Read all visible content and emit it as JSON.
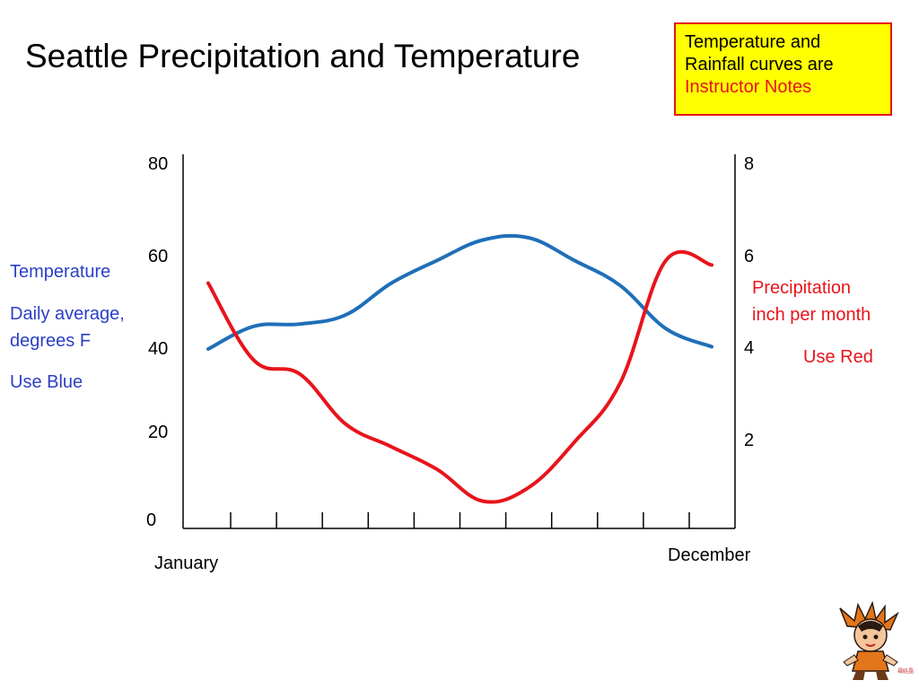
{
  "title": "Seattle Precipitation and Temperature",
  "note": {
    "line1": "Temperature and",
    "line2": "Rainfall curves are",
    "line3": "Instructor Notes"
  },
  "left_legend": {
    "label": "Temperature",
    "unit_line1": "Daily average,",
    "unit_line2": "degrees F",
    "instruction": "Use Blue",
    "color": "#1f6fb8"
  },
  "right_legend": {
    "line1": "Precipitation",
    "line2": "inch per month",
    "instruction": "Use Red",
    "color": "#e8141b"
  },
  "chart_data": {
    "type": "line",
    "x_start_label": "January",
    "x_end_label": "December",
    "x": [
      1,
      2,
      3,
      4,
      5,
      6,
      7,
      8,
      9,
      10,
      11,
      12
    ],
    "y_left_ticks": [
      "80",
      "60",
      "40",
      "20",
      "0"
    ],
    "y_right_ticks": [
      "8",
      "6",
      "4",
      "2"
    ],
    "ylim_left": [
      0,
      80
    ],
    "ylim_right": [
      0,
      8
    ],
    "series": [
      {
        "axis": "left",
        "color": "#1f6fb8",
        "values": [
          39.5,
          44.5,
          45,
          47,
          54,
          59,
          63.5,
          64,
          59,
          53.5,
          44,
          40
        ]
      },
      {
        "axis": "right",
        "color": "#e8141b",
        "values": [
          5.4,
          3.7,
          3.4,
          2.3,
          1.8,
          1.3,
          0.6,
          0.9,
          1.9,
          3.2,
          5.9,
          5.8
        ]
      }
    ]
  },
  "mascot": {
    "caption": "福娃晶晶"
  }
}
